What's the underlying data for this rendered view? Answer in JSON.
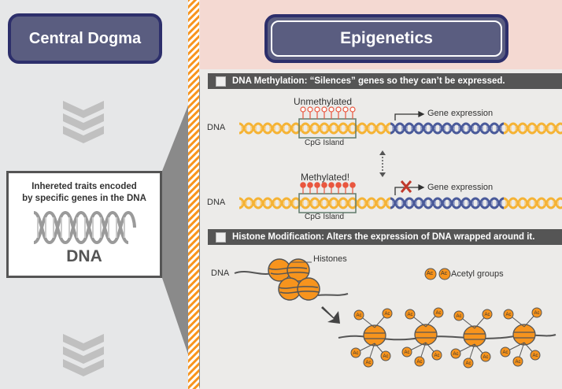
{
  "left": {
    "title": "Central Dogma",
    "traits_line1": "Inhereted traits encoded",
    "traits_line2": "by specific genes in the DNA",
    "dna_label": "DNA"
  },
  "right": {
    "title": "Epigenetics",
    "methylation": {
      "bar_text": "DNA Methylation: “Silences” genes so they can’t be expressed.",
      "unmethylated": "Unmethylated",
      "methylated": "Methylated!",
      "gene_expression": "Gene expression",
      "cpg_island": "CpG Island",
      "dna": "DNA"
    },
    "histone": {
      "bar_text": "Histone Modification: Alters the expression of DNA wrapped around it.",
      "dna": "DNA",
      "histones": "Histones",
      "acetyl_groups": "Acetyl groups",
      "ac": "Ac"
    }
  },
  "colors": {
    "orange": "#f7941d",
    "dna_yellow": "#f5b335",
    "dna_blue": "#4a5a9a",
    "methyl_red": "#e9573f",
    "navy": "#2d2f6b",
    "bar_gray": "#555555"
  }
}
